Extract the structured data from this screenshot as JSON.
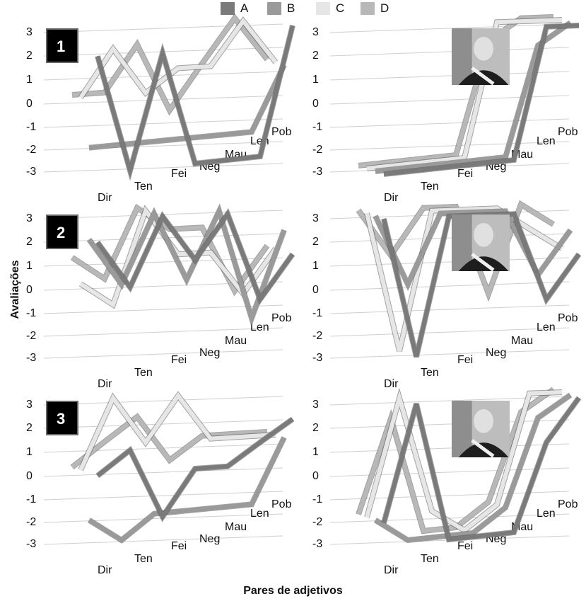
{
  "legend": [
    {
      "label": "A",
      "color": "#7a7a7a"
    },
    {
      "label": "B",
      "color": "#9a9a9a"
    },
    {
      "label": "C",
      "color": "#e6e6e6"
    },
    {
      "label": "D",
      "color": "#b8b8b8"
    }
  ],
  "ylabel": "Avaliações",
  "xlabel": "Pares de adjetivos",
  "photo_icons": [
    "portrait-photo-1",
    "portrait-photo-2",
    "portrait-photo-3"
  ],
  "chart_data": [
    {
      "type": "line",
      "panel": "1",
      "side": "left",
      "categories": [
        "Dir",
        "Ten",
        "Fei",
        "Neg",
        "Mau",
        "Len",
        "Pob"
      ],
      "yticks": [
        "3",
        "2",
        "1",
        "0",
        "-1",
        "-2",
        "-3"
      ],
      "ylim": [
        -3,
        3
      ],
      "series": [
        {
          "values": [
            2,
            -3,
            2,
            -3,
            -3,
            -3,
            3
          ]
        },
        {
          "values": [
            -2,
            -2,
            -2,
            -2,
            -2,
            -2,
            1
          ]
        },
        {
          "values": [
            0,
            2,
            0,
            1,
            1,
            3,
            1
          ]
        },
        {
          "values": [
            0,
            0,
            2,
            -1,
            1,
            3,
            1
          ]
        }
      ]
    },
    {
      "type": "line",
      "panel": "1",
      "side": "right",
      "categories": [
        "Dir",
        "Ten",
        "Fei",
        "Neg",
        "Mau",
        "Len",
        "Pob"
      ],
      "yticks": [
        "3",
        "2",
        "1",
        "0",
        "-1",
        "-2",
        "-3"
      ],
      "ylim": [
        -3,
        3
      ],
      "series": [
        {
          "values": [
            -3,
            -3,
            -3,
            -3,
            -3,
            3,
            3
          ]
        },
        {
          "values": [
            -3,
            -3,
            -3,
            -3,
            -3,
            2,
            3
          ]
        },
        {
          "values": [
            -3,
            -3,
            -3,
            -3,
            3,
            3,
            3
          ]
        },
        {
          "values": [
            -3,
            -3,
            -3,
            -3,
            2,
            3,
            3
          ]
        }
      ]
    },
    {
      "type": "line",
      "panel": "2",
      "side": "left",
      "categories": [
        "Dir",
        "Ten",
        "Fei",
        "Neg",
        "Mau",
        "Len",
        "Pob"
      ],
      "yticks": [
        "3",
        "2",
        "1",
        "0",
        "-1",
        "-2",
        "-3"
      ],
      "ylim": [
        -3,
        3
      ],
      "series": [
        {
          "values": [
            2,
            0,
            3,
            1,
            3,
            -1,
            1
          ]
        },
        {
          "values": [
            2,
            0,
            3,
            0,
            3,
            -2,
            2
          ]
        },
        {
          "values": [
            0,
            -1,
            3,
            1,
            1,
            -1,
            1
          ]
        },
        {
          "values": [
            1,
            0,
            3,
            2,
            2,
            -1,
            1
          ]
        }
      ]
    },
    {
      "type": "line",
      "panel": "2",
      "side": "right",
      "categories": [
        "Dir",
        "Ten",
        "Fei",
        "Neg",
        "Mau",
        "Len",
        "Pob"
      ],
      "yticks": [
        "3",
        "2",
        "1",
        "0",
        "-1",
        "-2",
        "-3"
      ],
      "ylim": [
        -3,
        3
      ],
      "series": [
        {
          "values": [
            3,
            -3,
            3,
            3,
            3,
            -1,
            1
          ]
        },
        {
          "values": [
            3,
            0,
            3,
            3,
            3,
            0,
            2
          ]
        },
        {
          "values": [
            3,
            -3,
            3,
            3,
            3,
            2,
            1
          ]
        },
        {
          "values": [
            3,
            1,
            3,
            3,
            -1,
            3,
            2
          ]
        }
      ]
    },
    {
      "type": "line",
      "panel": "3",
      "side": "left",
      "categories": [
        "Dir",
        "Ten",
        "Fei",
        "Neg",
        "Mau",
        "Len",
        "Pob"
      ],
      "yticks": [
        "3",
        "2",
        "1",
        "0",
        "-1",
        "-2",
        "-3"
      ],
      "ylim": [
        -3,
        3
      ],
      "series": [
        {
          "values": [
            0,
            1,
            -2,
            0,
            0,
            1,
            2
          ]
        },
        {
          "values": [
            -2,
            -3,
            -2,
            -2,
            -2,
            -2,
            1
          ]
        },
        {
          "values": [
            0,
            3,
            1,
            3,
            1,
            1,
            1
          ]
        },
        {
          "values": [
            0,
            1,
            2,
            0,
            1,
            1,
            1
          ]
        }
      ]
    },
    {
      "type": "line",
      "panel": "3",
      "side": "right",
      "categories": [
        "Dir",
        "Ten",
        "Fei",
        "Neg",
        "Mau",
        "Len",
        "Pob"
      ],
      "yticks": [
        "3",
        "2",
        "1",
        "0",
        "-1",
        "-2",
        "-3"
      ],
      "ylim": [
        -3,
        3
      ],
      "series": [
        {
          "values": [
            -2,
            3,
            -3,
            -3,
            -3,
            1,
            3
          ]
        },
        {
          "values": [
            -2,
            -3,
            -3,
            -3,
            -2,
            2,
            3
          ]
        },
        {
          "values": [
            -2,
            3,
            -2,
            -3,
            -2,
            3,
            3
          ]
        },
        {
          "values": [
            -2,
            2,
            -3,
            -3,
            -2,
            2,
            3
          ]
        }
      ]
    }
  ]
}
